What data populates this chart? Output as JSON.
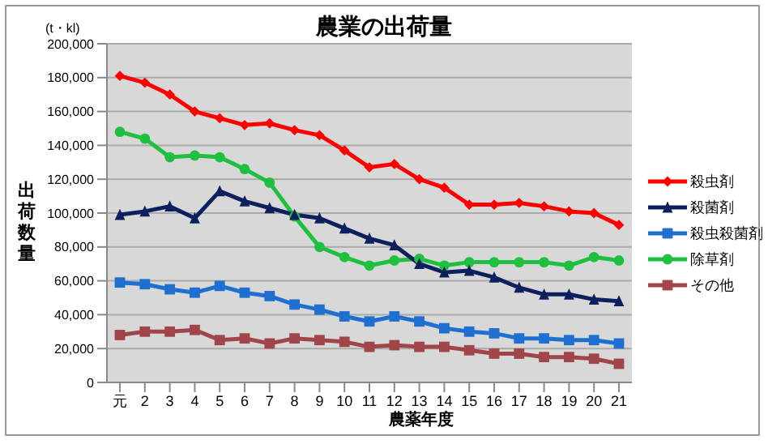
{
  "chart_data": {
    "type": "line",
    "title": "農業の出荷量",
    "xlabel": "農薬年度",
    "ylabel": "出荷数量",
    "annotations": [
      "(t・kl)"
    ],
    "categories": [
      "元",
      "2",
      "3",
      "4",
      "5",
      "6",
      "7",
      "8",
      "9",
      "10",
      "11",
      "12",
      "13",
      "14",
      "15",
      "16",
      "17",
      "18",
      "19",
      "20",
      "21"
    ],
    "ylim": [
      0,
      200000
    ],
    "yticks": [
      {
        "value": 0,
        "label": "0"
      },
      {
        "value": 20000,
        "label": "20,000"
      },
      {
        "value": 40000,
        "label": "40,000"
      },
      {
        "value": 60000,
        "label": "60,000"
      },
      {
        "value": 80000,
        "label": "80,000"
      },
      {
        "value": 100000,
        "label": "100,000"
      },
      {
        "value": 120000,
        "label": "120,000"
      },
      {
        "value": 140000,
        "label": "140,000"
      },
      {
        "value": 160000,
        "label": "160,000"
      },
      {
        "value": 180000,
        "label": "180,000"
      },
      {
        "value": 200000,
        "label": "200,000"
      }
    ],
    "grid": "y",
    "legend": "right",
    "line_style": "solid",
    "series": [
      {
        "name": "殺虫剤",
        "color": "#ff0000",
        "marker": "diamond",
        "values": [
          181000,
          177000,
          170000,
          160000,
          156000,
          152000,
          153000,
          149000,
          146000,
          137000,
          127000,
          129000,
          120000,
          115000,
          105000,
          105000,
          106000,
          104000,
          101000,
          100000,
          93000
        ]
      },
      {
        "name": "殺菌剤",
        "color": "#0d1f5c",
        "marker": "triangle",
        "values": [
          99000,
          101000,
          104000,
          97000,
          113000,
          107000,
          103000,
          99000,
          97000,
          91000,
          85000,
          81000,
          70000,
          65000,
          66000,
          62000,
          56000,
          52000,
          52000,
          49000,
          48000
        ]
      },
      {
        "name": "殺虫殺菌剤",
        "color": "#1f6fd0",
        "marker": "square",
        "values": [
          59000,
          58000,
          55000,
          53000,
          57000,
          53000,
          51000,
          46000,
          43000,
          39000,
          36000,
          39000,
          36000,
          32000,
          30000,
          29000,
          26000,
          26000,
          25000,
          25000,
          23000
        ]
      },
      {
        "name": "除草剤",
        "color": "#1fbf3f",
        "marker": "circle",
        "values": [
          148000,
          144000,
          133000,
          134000,
          133000,
          126000,
          118000,
          98000,
          80000,
          74000,
          69000,
          72000,
          73000,
          69000,
          71000,
          71000,
          71000,
          71000,
          69000,
          74000,
          72000
        ]
      },
      {
        "name": "その他",
        "color": "#a0454a",
        "marker": "square",
        "values": [
          28000,
          30000,
          30000,
          31000,
          25000,
          26000,
          23000,
          26000,
          25000,
          24000,
          21000,
          22000,
          21000,
          21000,
          19000,
          17000,
          17000,
          15000,
          15000,
          14000,
          11000
        ]
      }
    ]
  }
}
